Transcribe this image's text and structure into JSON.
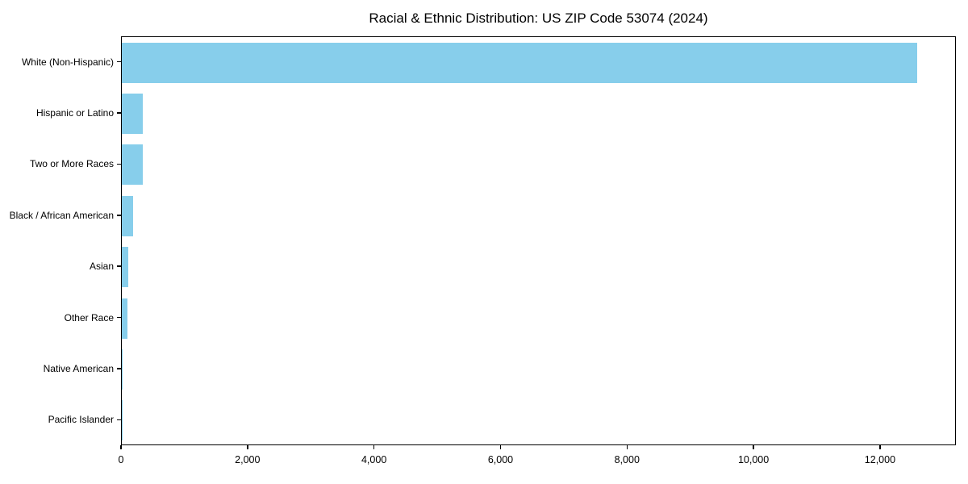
{
  "chart_data": {
    "type": "bar",
    "orientation": "horizontal",
    "title": "Racial & Ethnic Distribution: US ZIP Code 53074 (2024)",
    "categories": [
      "White (Non-Hispanic)",
      "Hispanic or Latino",
      "Two or More Races",
      "Black / African American",
      "Asian",
      "Other Race",
      "Native American",
      "Pacific Islander"
    ],
    "values": [
      12580,
      335,
      330,
      180,
      105,
      90,
      15,
      2
    ],
    "xlabel": "",
    "ylabel": "",
    "xlim": [
      0,
      13200
    ],
    "xticks": [
      0,
      2000,
      4000,
      6000,
      8000,
      10000,
      12000
    ],
    "xtick_labels": [
      "0",
      "2,000",
      "4,000",
      "6,000",
      "8,000",
      "10,000",
      "12,000"
    ],
    "bar_color": "#87CEEB",
    "axis_color": "#000000",
    "background_color": "#ffffff",
    "grid": false,
    "legend": null
  }
}
